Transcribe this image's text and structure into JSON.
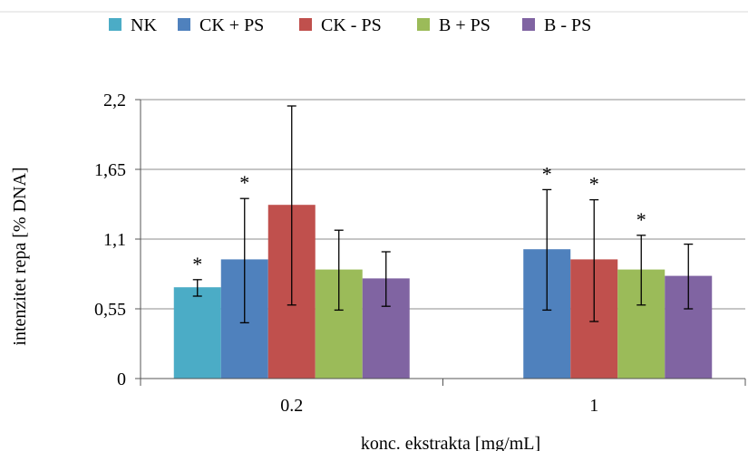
{
  "chart_data": {
    "type": "bar",
    "xlabel": "konc. ekstrakta [mg/mL]",
    "ylabel": "intenzitet repa [% DNA]",
    "ylim": [
      0,
      2.2
    ],
    "yticks": [
      {
        "value": 0,
        "label": "0"
      },
      {
        "value": 0.55,
        "label": "0,55"
      },
      {
        "value": 1.1,
        "label": "1,1"
      },
      {
        "value": 1.65,
        "label": "1,65"
      },
      {
        "value": 2.2,
        "label": "2,2"
      }
    ],
    "categories": [
      "0.2",
      "1"
    ],
    "grid": "horizontal",
    "legend_position": "top",
    "significance_marker": "*",
    "series": [
      {
        "name": "NK",
        "color": "#4bacc6",
        "values": [
          0.72,
          null
        ],
        "err_low": [
          0.65,
          null
        ],
        "err_high": [
          0.78,
          null
        ],
        "significant": [
          true,
          false
        ]
      },
      {
        "name": "CK + PS",
        "color": "#4f81bd",
        "values": [
          0.94,
          1.02
        ],
        "err_low": [
          0.44,
          0.54
        ],
        "err_high": [
          1.42,
          1.49
        ],
        "significant": [
          true,
          true
        ]
      },
      {
        "name": "CK - PS",
        "color": "#c0504d",
        "values": [
          1.37,
          0.94
        ],
        "err_low": [
          0.58,
          0.45
        ],
        "err_high": [
          2.15,
          1.41
        ],
        "significant": [
          false,
          true
        ]
      },
      {
        "name": "B + PS",
        "color": "#9bbb59",
        "values": [
          0.86,
          0.86
        ],
        "err_low": [
          0.54,
          0.58
        ],
        "err_high": [
          1.17,
          1.13
        ],
        "significant": [
          false,
          true
        ]
      },
      {
        "name": "B - PS",
        "color": "#8064a2",
        "values": [
          0.79,
          0.81
        ],
        "err_low": [
          0.57,
          0.55
        ],
        "err_high": [
          1.0,
          1.06
        ],
        "significant": [
          false,
          false
        ]
      }
    ]
  }
}
